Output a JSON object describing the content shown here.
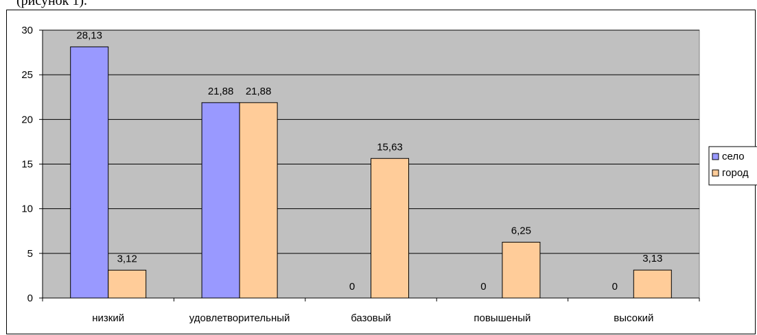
{
  "top_text": "(рисунок 1).",
  "chart_data": {
    "type": "bar",
    "categories": [
      "низкий",
      "удовлетворительный",
      "базовый",
      "повышеный",
      "высокий"
    ],
    "series": [
      {
        "name": "село",
        "values": [
          28.13,
          21.88,
          0,
          0,
          0
        ],
        "labels": [
          "28,13",
          "21,88",
          "0",
          "0",
          "0"
        ],
        "color": "#9999ff"
      },
      {
        "name": "город",
        "values": [
          3.12,
          21.88,
          15.63,
          6.25,
          3.13
        ],
        "labels": [
          "3,12",
          "21,88",
          "15,63",
          "6,25",
          "3,13"
        ],
        "color": "#ffcc99"
      }
    ],
    "ylim": [
      0,
      30
    ],
    "yticks": [
      0,
      5,
      10,
      15,
      20,
      25,
      30
    ],
    "grid": true,
    "plot_background": "#c0c0c0",
    "legend_position": "right",
    "xlabel": "",
    "ylabel": "",
    "title": ""
  }
}
